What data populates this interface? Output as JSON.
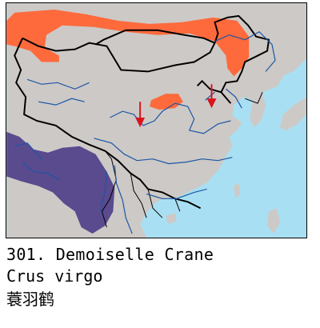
{
  "caption": {
    "number_name": "301. Demoiselle Crane",
    "scientific_name": "Crus virgo",
    "chinese_name": "蓑羽鹤"
  },
  "map": {
    "colors": {
      "land": "#cdc9c6",
      "sea": "#a9dff2",
      "lake": "#a9dff2",
      "borders": "#000000",
      "rivers": "#1b56a6",
      "breeding_range": "#fe6a3c",
      "winter_range": "#5a4a8e",
      "migration_arrow": "#d8141c"
    },
    "legend_icons": [
      "breeding-range",
      "wintering-range",
      "migration-arrow"
    ]
  }
}
